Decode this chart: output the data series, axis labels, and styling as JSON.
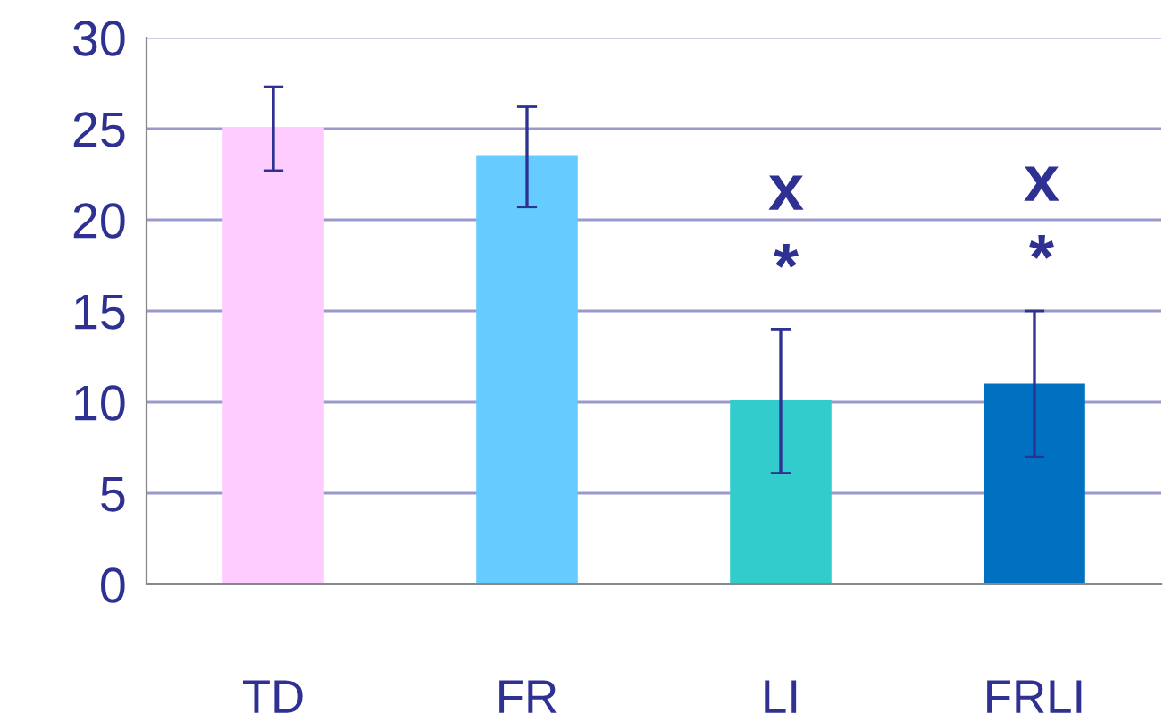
{
  "chart_data": {
    "type": "bar",
    "categories": [
      "TD",
      "FR",
      "LI",
      "FRLI"
    ],
    "values": [
      25.1,
      23.5,
      10.1,
      11.0
    ],
    "colors": [
      "#ffccff",
      "#66ccff",
      "#33cccc",
      "#0070c0"
    ],
    "errors": [
      [
        22.7,
        27.3
      ],
      [
        20.7,
        26.2
      ],
      [
        6.1,
        14.0
      ],
      [
        7.0,
        15.0
      ]
    ],
    "ylim": [
      0,
      30
    ],
    "yticks": [
      0,
      5,
      10,
      15,
      20,
      25,
      30
    ],
    "grid": "y",
    "annotations": [
      "x",
      "*",
      "x",
      "*"
    ]
  }
}
